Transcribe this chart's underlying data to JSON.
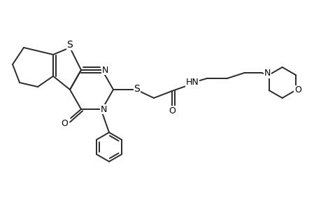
{
  "bg_color": "#ffffff",
  "line_color": "#2a2a2a",
  "line_width": 1.4,
  "font_size": 9,
  "figsize": [
    4.6,
    3.0
  ],
  "dpi": 100,
  "xlim": [
    0,
    11.5
  ],
  "ylim": [
    1.5,
    9.0
  ]
}
